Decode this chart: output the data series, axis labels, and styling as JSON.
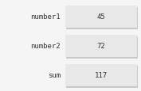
{
  "rows": [
    {
      "label": "number1",
      "value": "45"
    },
    {
      "label": "number2",
      "value": "72"
    },
    {
      "label": "sum",
      "value": "117"
    }
  ],
  "page_background": "#f5f5f5",
  "box_color": "#e8e8e8",
  "shadow_color": "#c8c8c8",
  "label_color": "#333333",
  "value_color": "#333333",
  "label_fontsize": 6.5,
  "value_fontsize": 6.5,
  "font_family": "monospace"
}
